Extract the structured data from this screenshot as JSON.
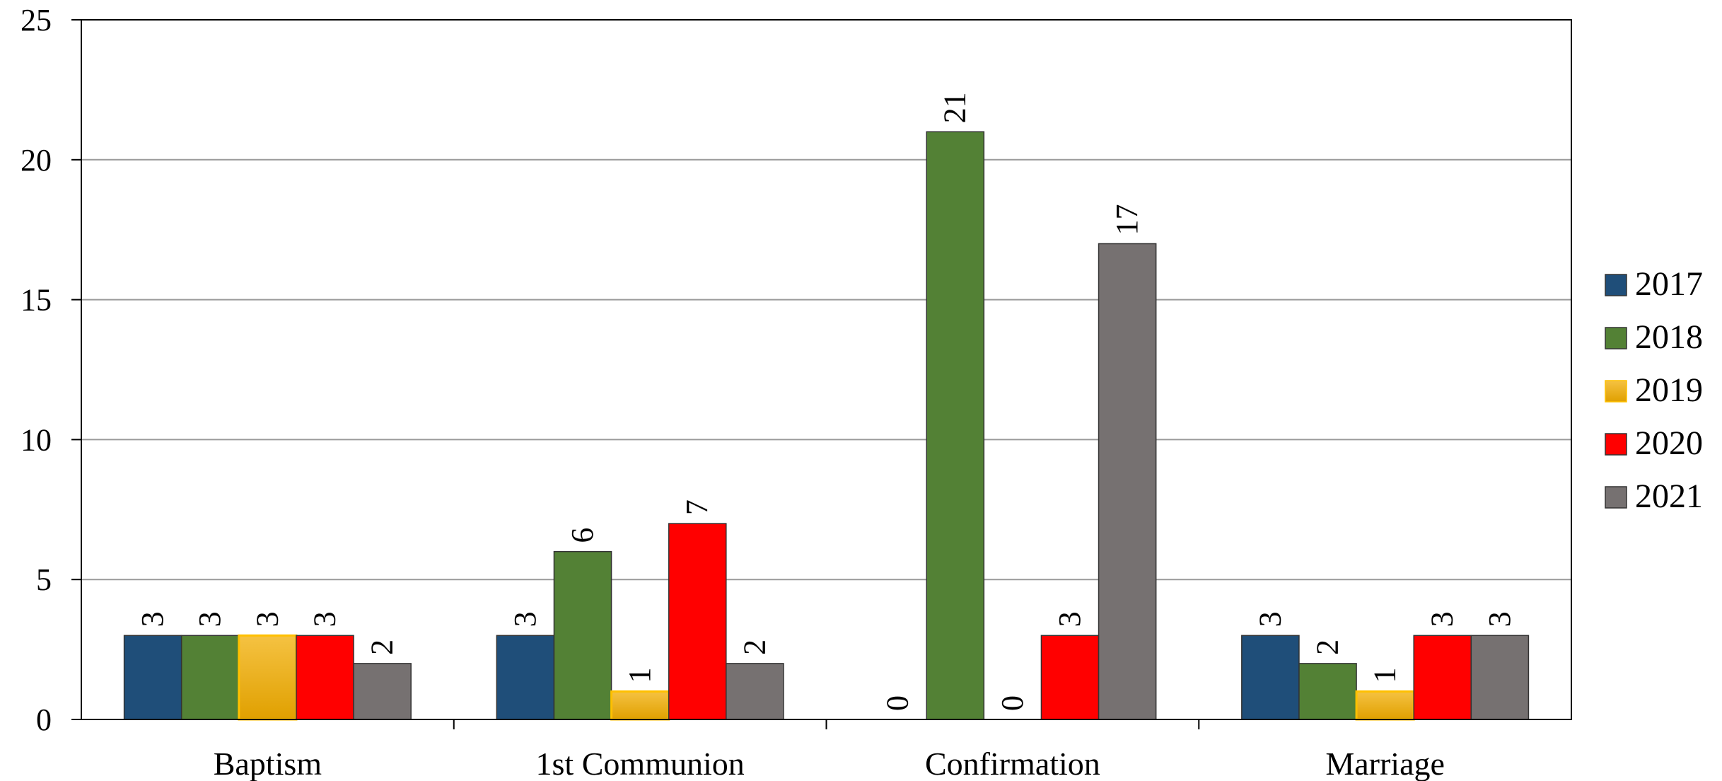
{
  "chart_data": {
    "type": "bar",
    "title": "",
    "xlabel": "",
    "ylabel": "",
    "categories": [
      "Baptism",
      "1st Communion",
      "Confirmation",
      "Marriage"
    ],
    "ylim": [
      0,
      25
    ],
    "yticks": [
      "0",
      "5",
      "10",
      "15",
      "20",
      "25"
    ],
    "grid": true,
    "legend_position": "right",
    "data_labels": true,
    "series": [
      {
        "name": "2017",
        "color": "#1F4E79",
        "values": [
          3,
          3,
          0,
          3
        ]
      },
      {
        "name": "2018",
        "color": "#538135",
        "values": [
          3,
          6,
          21,
          2
        ]
      },
      {
        "name": "2019",
        "color": "#F2B300",
        "values": [
          3,
          1,
          0,
          1
        ]
      },
      {
        "name": "2020",
        "color": "#FF0000",
        "values": [
          3,
          7,
          3,
          3
        ]
      },
      {
        "name": "2021",
        "color": "#767171",
        "values": [
          2,
          2,
          17,
          3
        ]
      }
    ]
  }
}
